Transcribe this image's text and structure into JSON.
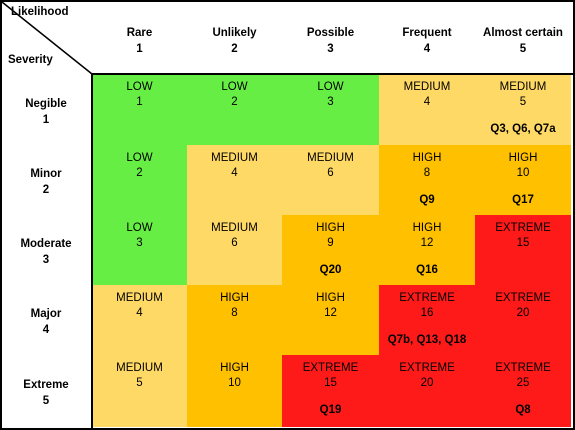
{
  "corner": {
    "likelihood_label": "Likelihood",
    "severity_label": "Severity"
  },
  "columns": [
    {
      "name": "Rare",
      "num": "1"
    },
    {
      "name": "Unlikely",
      "num": "2"
    },
    {
      "name": "Possible",
      "num": "3"
    },
    {
      "name": "Frequent",
      "num": "4"
    },
    {
      "name": "Almost certain",
      "num": "5"
    }
  ],
  "rows": [
    {
      "name": "Negible",
      "num": "1"
    },
    {
      "name": "Minor",
      "num": "2"
    },
    {
      "name": "Moderate",
      "num": "3"
    },
    {
      "name": "Major",
      "num": "4"
    },
    {
      "name": "Extreme",
      "num": "5"
    }
  ],
  "cells": [
    [
      {
        "level": "LOW",
        "score": "1",
        "refs": ""
      },
      {
        "level": "LOW",
        "score": "2",
        "refs": ""
      },
      {
        "level": "LOW",
        "score": "3",
        "refs": ""
      },
      {
        "level": "MEDIUM",
        "score": "4",
        "refs": ""
      },
      {
        "level": "MEDIUM",
        "score": "5",
        "refs": "Q3, Q6, Q7a"
      }
    ],
    [
      {
        "level": "LOW",
        "score": "2",
        "refs": ""
      },
      {
        "level": "MEDIUM",
        "score": "4",
        "refs": ""
      },
      {
        "level": "MEDIUM",
        "score": "6",
        "refs": ""
      },
      {
        "level": "HIGH",
        "score": "8",
        "refs": "Q9"
      },
      {
        "level": "HIGH",
        "score": "10",
        "refs": "Q17"
      }
    ],
    [
      {
        "level": "LOW",
        "score": "3",
        "refs": ""
      },
      {
        "level": "MEDIUM",
        "score": "6",
        "refs": ""
      },
      {
        "level": "HIGH",
        "score": "9",
        "refs": "Q20"
      },
      {
        "level": "HIGH",
        "score": "12",
        "refs": "Q16"
      },
      {
        "level": "EXTREME",
        "score": "15",
        "refs": ""
      }
    ],
    [
      {
        "level": "MEDIUM",
        "score": "4",
        "refs": ""
      },
      {
        "level": "HIGH",
        "score": "8",
        "refs": ""
      },
      {
        "level": "HIGH",
        "score": "12",
        "refs": ""
      },
      {
        "level": "EXTREME",
        "score": "16",
        "refs": "Q7b, Q13, Q18"
      },
      {
        "level": "EXTREME",
        "score": "20",
        "refs": ""
      }
    ],
    [
      {
        "level": "MEDIUM",
        "score": "5",
        "refs": ""
      },
      {
        "level": "HIGH",
        "score": "10",
        "refs": ""
      },
      {
        "level": "EXTREME",
        "score": "15",
        "refs": "Q19"
      },
      {
        "level": "EXTREME",
        "score": "20",
        "refs": ""
      },
      {
        "level": "EXTREME",
        "score": "25",
        "refs": "Q8"
      }
    ]
  ],
  "colors": {
    "LOW": "#66ee44",
    "MEDIUM": "#ffd966",
    "HIGH": "#ffc000",
    "EXTREME": "#ff1a1a",
    "border": "#000000",
    "header_bg": "#ffffff"
  }
}
